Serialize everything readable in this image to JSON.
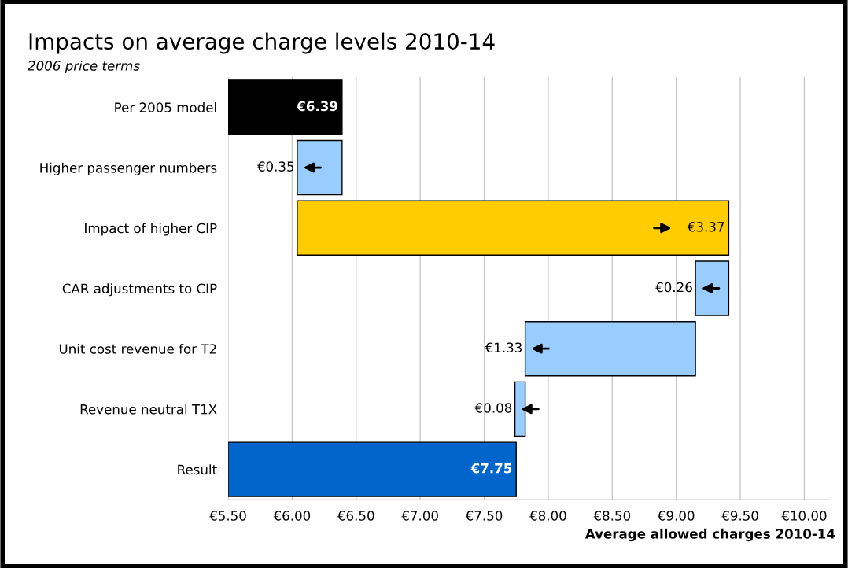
{
  "chart_data": {
    "type": "bar",
    "orientation": "horizontal",
    "title": "Impacts on average charge levels 2010-14",
    "subtitle": "2006 price terms",
    "xlabel": "Average allowed charges 2010-14",
    "categories": [
      "Per 2005 model",
      "Higher passenger numbers",
      "Impact of higher CIP",
      "CAR adjustments to CIP",
      "Unit cost revenue for T2",
      "Revenue neutral T1X",
      "Result"
    ],
    "base": [
      5.5,
      6.39,
      6.04,
      9.41,
      9.15,
      7.82,
      5.5
    ],
    "values": [
      0.89,
      -0.35,
      3.37,
      -0.26,
      -1.33,
      -0.08,
      2.25
    ],
    "value_labels": [
      "€6.39",
      "€0.35",
      "€3.37",
      "€0.26",
      "€1.33",
      "€0.08",
      "€7.75"
    ],
    "colors": [
      "#000000",
      "#99ccff",
      "#ffcc00",
      "#99ccff",
      "#99ccff",
      "#99ccff",
      "#0066cc"
    ],
    "xlim": [
      5.5,
      10.2
    ],
    "xticks": [
      {
        "value": 5.5,
        "label": "€5.50"
      },
      {
        "value": 6.0,
        "label": "€6.00"
      },
      {
        "value": 6.5,
        "label": "€6.50"
      },
      {
        "value": 7.0,
        "label": "€7.00"
      },
      {
        "value": 7.5,
        "label": "€7.50"
      },
      {
        "value": 8.0,
        "label": "€8.00"
      },
      {
        "value": 8.5,
        "label": "€8.50"
      },
      {
        "value": 9.0,
        "label": "€9.00"
      },
      {
        "value": 9.5,
        "label": "€9.50"
      },
      {
        "value": 10.0,
        "label": "€10.00"
      }
    ],
    "grid": "x"
  }
}
